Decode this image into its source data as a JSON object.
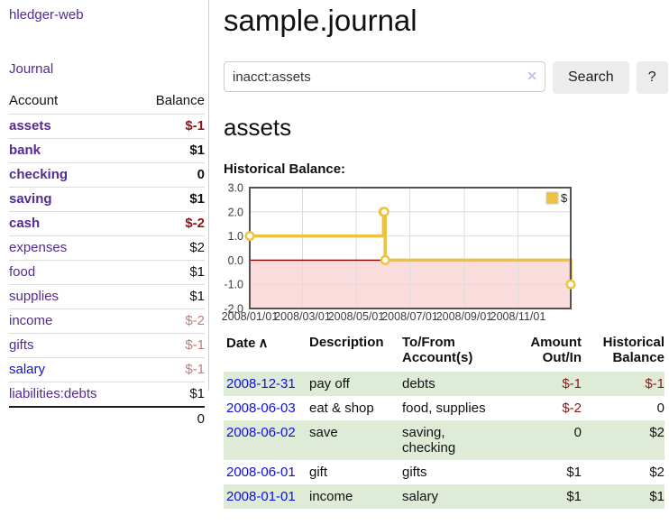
{
  "sidebar": {
    "brand": "hledger-web",
    "journal_link": "Journal",
    "accounts_table": {
      "headers": {
        "account": "Account",
        "balance": "Balance"
      },
      "rows": [
        {
          "name": "assets",
          "indent": 1,
          "bold": true,
          "link": "visited",
          "balance": "$-1",
          "balance_class": "neg"
        },
        {
          "name": "bank",
          "indent": 2,
          "bold": true,
          "link": "visited",
          "balance": "$1",
          "balance_class": ""
        },
        {
          "name": "checking",
          "indent": 3,
          "bold": true,
          "link": "visited",
          "balance": "0",
          "balance_class": ""
        },
        {
          "name": "saving",
          "indent": 3,
          "bold": true,
          "link": "visited",
          "balance": "$1",
          "balance_class": ""
        },
        {
          "name": "cash",
          "indent": 2,
          "bold": true,
          "link": "visited",
          "balance": "$-2",
          "balance_class": "neg"
        },
        {
          "name": "expenses",
          "indent": 1,
          "bold": false,
          "link": "visited",
          "balance": "$2",
          "balance_class": ""
        },
        {
          "name": "food",
          "indent": 2,
          "bold": false,
          "link": "visited",
          "balance": "$1",
          "balance_class": ""
        },
        {
          "name": "supplies",
          "indent": 2,
          "bold": false,
          "link": "visited",
          "balance": "$1",
          "balance_class": ""
        },
        {
          "name": "income",
          "indent": 1,
          "bold": false,
          "link": "visited",
          "balance": "$-2",
          "balance_class": "neg-soft"
        },
        {
          "name": "gifts",
          "indent": 2,
          "bold": false,
          "link": "visited",
          "balance": "$-1",
          "balance_class": "neg-soft"
        },
        {
          "name": "salary",
          "indent": 2,
          "bold": false,
          "link": "unvisited",
          "balance": "$-1",
          "balance_class": "neg-soft"
        },
        {
          "name": "liabilities:debts",
          "indent": 1,
          "bold": false,
          "link": "visited",
          "balance": "$1",
          "balance_class": "",
          "last": true
        }
      ],
      "total": "0"
    }
  },
  "main": {
    "title": "sample.journal",
    "search": {
      "value": "inacct:assets",
      "clear_icon": "✕",
      "search_button": "Search",
      "help_button": "?"
    },
    "account_heading": "assets",
    "chart_label": "Historical Balance:"
  },
  "chart_data": {
    "type": "line",
    "step": true,
    "title": "Historical Balance:",
    "series": [
      {
        "name": "$",
        "color": "#edc240",
        "points": [
          [
            "2008-01-01",
            1
          ],
          [
            "2008-06-01",
            2
          ],
          [
            "2008-06-02",
            2
          ],
          [
            "2008-06-03",
            0
          ],
          [
            "2008-12-31",
            -1
          ]
        ]
      }
    ],
    "xlim": [
      "2008-01-01",
      "2008-12-31"
    ],
    "ylim": [
      -2,
      3
    ],
    "y_tick_values": [
      3,
      2,
      1,
      0,
      -1,
      -2
    ],
    "y_tick_labels": [
      "3.0",
      "2.0",
      "1.0",
      "0.0",
      "-1.0",
      "-2.0"
    ],
    "x_tick_dates": [
      "2008-01-01",
      "2008-03-01",
      "2008-05-01",
      "2008-07-01",
      "2008-09-01",
      "2008-11-01"
    ],
    "x_tick_labels": [
      "2008/01/01",
      "2008/03/01",
      "2008/05/01",
      "2008/07/01",
      "2008/09/01",
      "2008/11/01"
    ],
    "legend": {
      "label": "$",
      "position": "top-right"
    },
    "grid": true,
    "negative_region": true,
    "colors": {
      "line": "#edc240",
      "marker_fill": "#ffffff",
      "negative_fill": "#fbdcdc",
      "zero_line": "#8b0000",
      "grid": "#dcdcdc",
      "border": "#545454",
      "tick_text": "#3c3c3c"
    }
  },
  "register": {
    "columns": [
      {
        "lines": [
          "Date"
        ],
        "sort_icon": "∧",
        "align": "left"
      },
      {
        "lines": [
          "Description"
        ],
        "align": "left"
      },
      {
        "lines": [
          "To/From",
          "Account(s)"
        ],
        "align": "left"
      },
      {
        "lines": [
          "Amount",
          "Out/In"
        ],
        "align": "right"
      },
      {
        "lines": [
          "Historical",
          "Balance"
        ],
        "align": "right"
      }
    ],
    "rows": [
      {
        "date": "2008-12-31",
        "description": "pay off",
        "accounts": "debts",
        "amount": "$-1",
        "balance": "$-1"
      },
      {
        "date": "2008-06-03",
        "description": "eat & shop",
        "accounts": "food, supplies",
        "amount": "$-2",
        "balance": "0"
      },
      {
        "date": "2008-06-02",
        "description": "save",
        "accounts": "saving,\nchecking",
        "amount": "0",
        "balance": "$2"
      },
      {
        "date": "2008-06-01",
        "description": "gift",
        "accounts": "gifts",
        "amount": "$1",
        "balance": "$2"
      },
      {
        "date": "2008-01-01",
        "description": "income",
        "accounts": "salary",
        "amount": "$1",
        "balance": "$1"
      }
    ]
  },
  "colors": {
    "link_purple": "#552a92",
    "link_blue": "#0f0fe0",
    "negative_strong": "#8f1414",
    "negative_soft": "#c07d7d",
    "row_green": "#deecd7",
    "button_bg": "#ececec"
  }
}
